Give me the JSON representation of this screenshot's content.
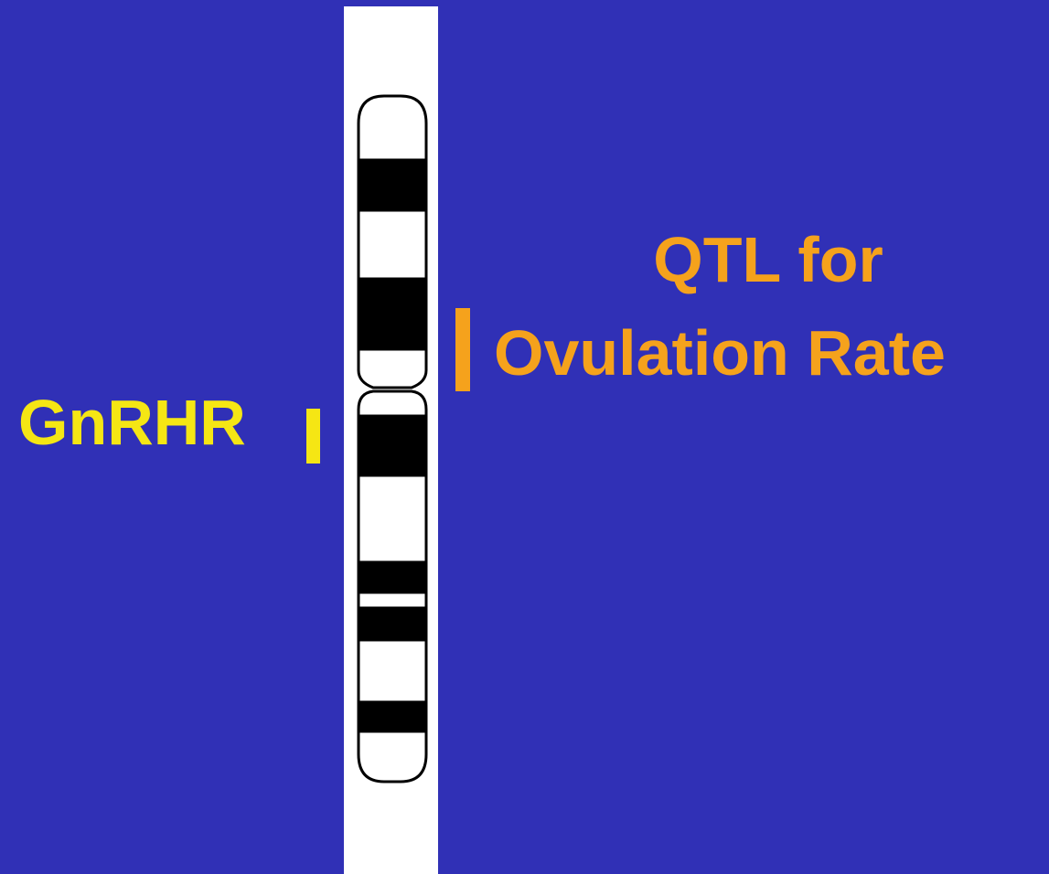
{
  "gene_label": "GnRHR",
  "qtl_label": {
    "lines": [
      "QTL for",
      "Ovulation Rate"
    ]
  }
}
